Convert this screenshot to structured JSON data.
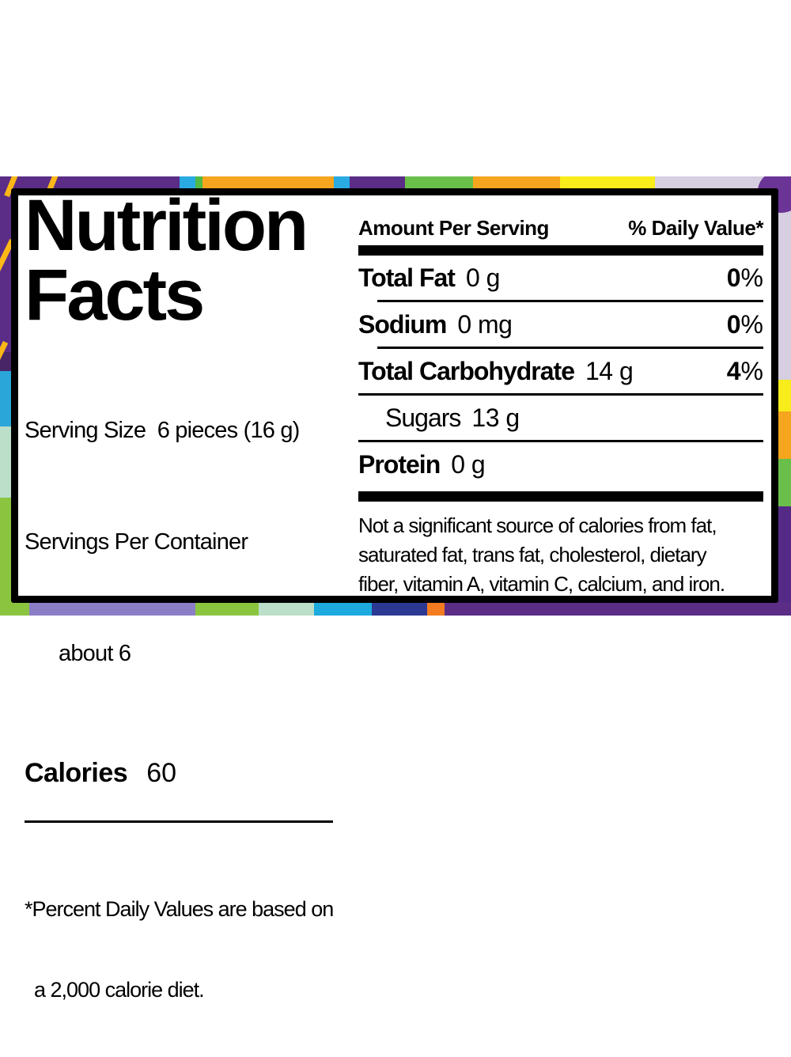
{
  "label": {
    "title_line1": "Nutrition",
    "title_line2": "Facts",
    "serving_size": "Serving Size  6 pieces (16 g)",
    "servings_per_container": "Servings Per Container",
    "servings_about": "about 6",
    "calories_label": "Calories",
    "calories_value": "60",
    "left_footnote_line1": "*Percent Daily Values are based on",
    "left_footnote_line2": "a 2,000 calorie diet.",
    "amount_header": "Amount Per Serving",
    "daily_value_header": "% Daily Value*",
    "rows": [
      {
        "name": "Total Fat",
        "amount": "0 g",
        "dv": "0",
        "pct": "%"
      },
      {
        "name": "Sodium",
        "amount": "0 mg",
        "dv": "0",
        "pct": "%"
      },
      {
        "name": "Total Carbohydrate",
        "amount": "14 g",
        "dv": "4",
        "pct": "%"
      },
      {
        "name": "Sugars",
        "amount": "13 g"
      },
      {
        "name": "Protein",
        "amount": "0 g"
      }
    ],
    "not_significant_line1": "Not a significant source of calories from fat,",
    "not_significant_line2": "saturated fat, trans fat, cholesterol, dietary",
    "not_significant_line3": "fiber, vitamin A, vitamin C, calcium, and iron."
  },
  "palette": {
    "purple": "#5b2d87",
    "dark_purple": "#472566",
    "gold": "#f6a51f",
    "yellow": "#f8ec1a",
    "cyan": "#29abe2",
    "green": "#6abf4b",
    "lime": "#8bc540",
    "mint": "#bcdfc9",
    "pale_lavender": "#d6cee1",
    "medium_lavender": "#8b7ec6",
    "dark_blue": "#2b3992",
    "orange": "#f47b20",
    "label_background": "#ffffff",
    "label_border": "#000000"
  }
}
